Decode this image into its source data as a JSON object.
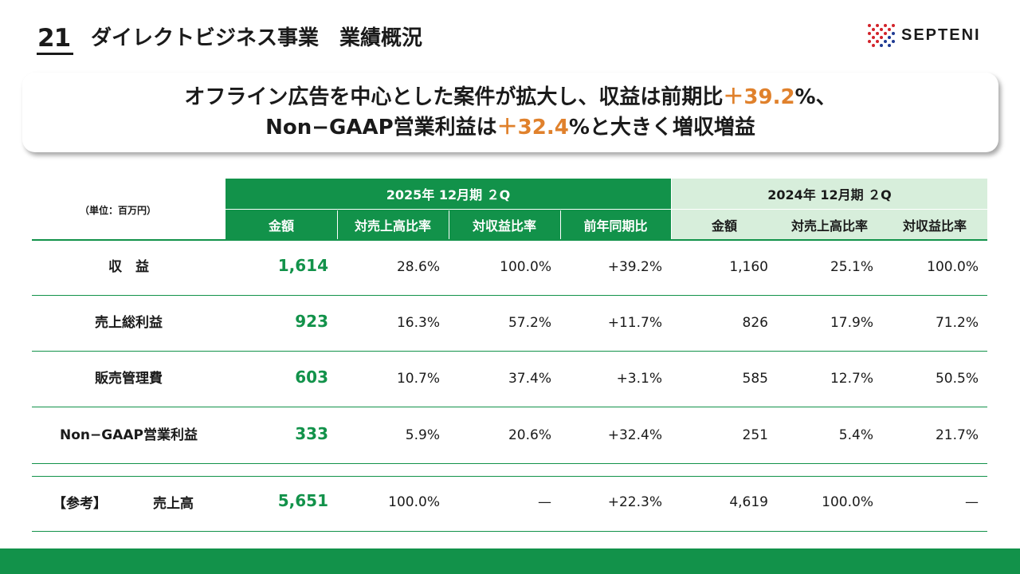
{
  "header": {
    "page_number": "21",
    "title": "ダイレクトビジネス事業　業績概況",
    "logo_text": "SEPTENI"
  },
  "headline": {
    "line1_pre": "オフライン広告を中心とした案件が拡大し、収益は前期比",
    "line1_accent": "＋39.2",
    "line1_post": "%、",
    "line2_pre": "Non−GAAP営業利益は",
    "line2_accent": "＋32.4",
    "line2_post": "%と大きく増収増益"
  },
  "colors": {
    "green": "#12924a",
    "light_green": "#d7eedb",
    "accent": "#e0812c"
  },
  "table": {
    "unit": "（単位：百万円）",
    "current_period": "2025年 12月期 ２Q",
    "previous_period": "2024年 12月期 ２Q",
    "current_columns": [
      "金額",
      "対売上高比率",
      "対収益比率",
      "前年同期比"
    ],
    "previous_columns": [
      "金額",
      "対売上高比率",
      "対収益比率"
    ],
    "rows": [
      {
        "label": "収　益",
        "values": [
          "1,614",
          "28.6%",
          "100.0%",
          "+39.2%",
          "1,160",
          "25.1%",
          "100.0%"
        ]
      },
      {
        "label": "売上総利益",
        "values": [
          "923",
          "16.3%",
          "57.2%",
          "+11.7%",
          "826",
          "17.9%",
          "71.2%"
        ]
      },
      {
        "label": "販売管理費",
        "values": [
          "603",
          "10.7%",
          "37.4%",
          "+3.1%",
          "585",
          "12.7%",
          "50.5%"
        ]
      },
      {
        "label": "Non−GAAP営業利益",
        "values": [
          "333",
          "5.9%",
          "20.6%",
          "+32.4%",
          "251",
          "5.4%",
          "21.7%"
        ]
      }
    ],
    "reference_row": {
      "tag": "【参考】",
      "label": "売上高",
      "values": [
        "5,651",
        "100.0%",
        "—",
        "+22.3%",
        "4,619",
        "100.0%",
        "—"
      ]
    }
  }
}
